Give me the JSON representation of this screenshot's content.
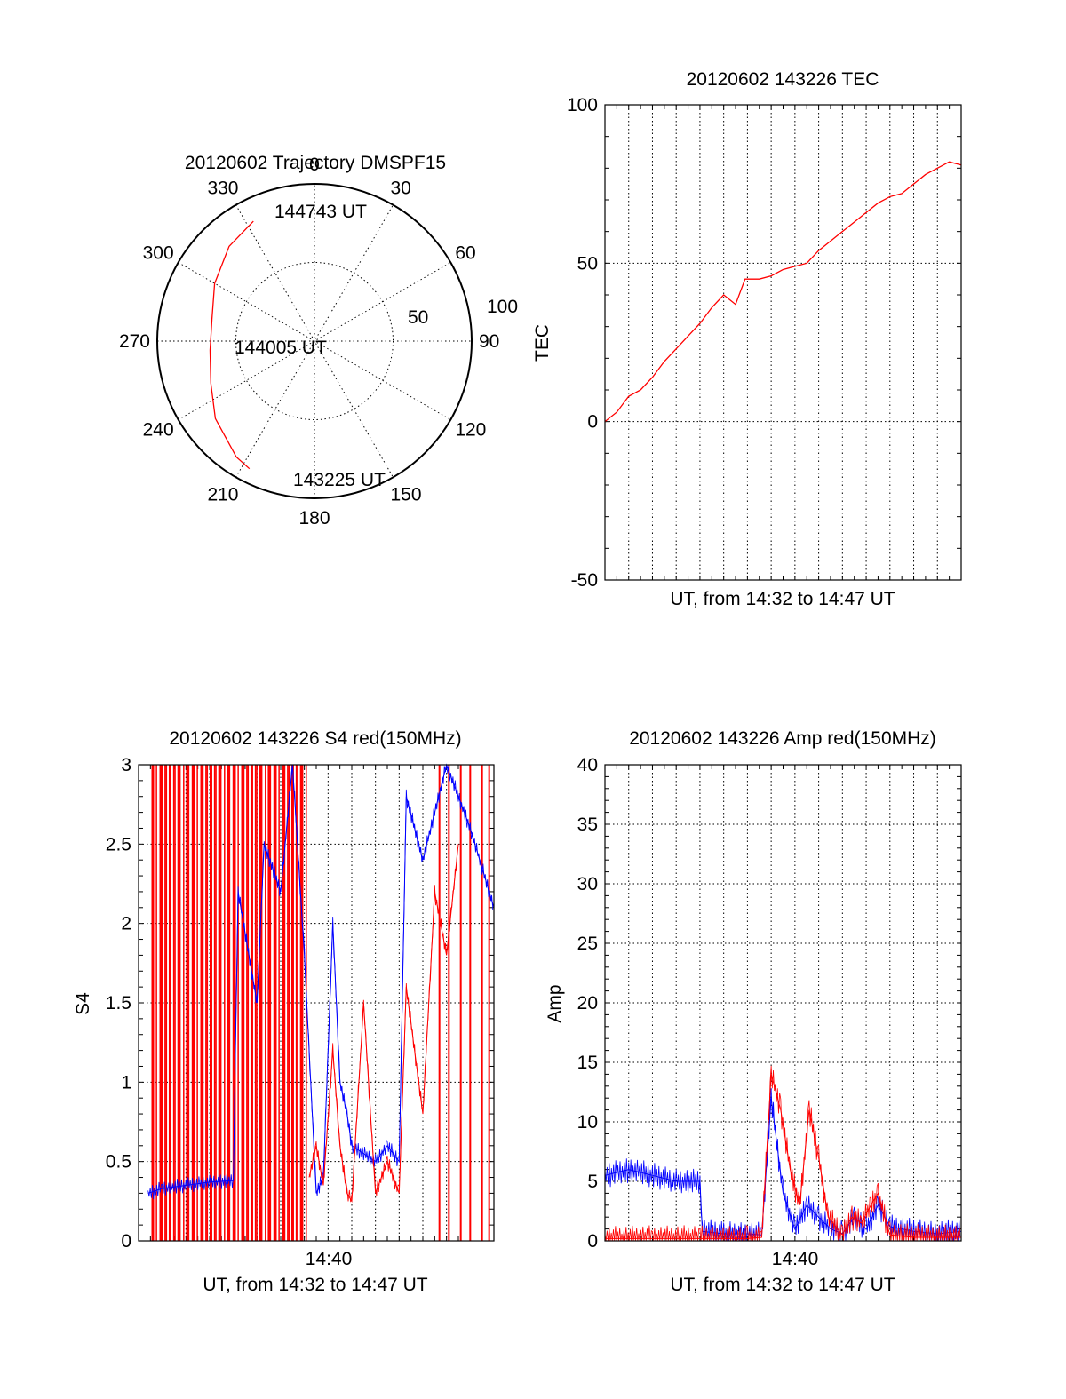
{
  "chart_data": [
    {
      "type": "polar",
      "title": "20120602 Trajectory DMSPF15",
      "angle_labels": [
        "0",
        "30",
        "60",
        "90",
        "120",
        "150",
        "180",
        "210",
        "240",
        "270",
        "300",
        "330"
      ],
      "radial_labels": [
        "50",
        "100"
      ],
      "point_labels": [
        "144743 UT",
        "144005 UT",
        "143225 UT"
      ],
      "series": [
        {
          "color": "#ff0000",
          "points": [
            {
              "az": 333,
              "el": 13
            },
            {
              "az": 318,
              "el": 17
            },
            {
              "az": 300,
              "el": 24
            },
            {
              "az": 282,
              "el": 30
            },
            {
              "az": 265,
              "el": 30
            },
            {
              "az": 248,
              "el": 26
            },
            {
              "az": 232,
              "el": 18
            },
            {
              "az": 214,
              "el": 10
            },
            {
              "az": 207,
              "el": 8
            }
          ]
        }
      ]
    },
    {
      "type": "line",
      "title": "20120602 143226 TEC",
      "xlabel": "UT, from 14:32 to 14:47 UT",
      "ylabel": "TEC",
      "ylim": [
        -50,
        100
      ],
      "yticks": [
        "100",
        "50",
        "0",
        "-50"
      ],
      "grid": true,
      "series": [
        {
          "color": "#ff0000",
          "x": [
            0,
            0.5,
            1,
            1.5,
            2,
            2.5,
            3,
            3.5,
            4,
            4.5,
            5,
            5.5,
            5.9,
            6.5,
            7,
            7.5,
            8,
            8.5,
            9,
            9.5,
            10,
            10.5,
            11,
            11.5,
            12,
            12.5,
            13,
            13.5,
            14,
            14.5,
            15
          ],
          "y": [
            0,
            3,
            8,
            10,
            14,
            19,
            23,
            27,
            31,
            36,
            40,
            37,
            45,
            45,
            46,
            48,
            49,
            50,
            54,
            57,
            60,
            63,
            66,
            69,
            71,
            72,
            75,
            78,
            80,
            82,
            81
          ]
        }
      ]
    },
    {
      "type": "line",
      "title": "20120602 143226 S4 red(150MHz)",
      "xlabel": "UT, from 14:32 to 14:47 UT",
      "ylabel": "S4",
      "ylim": [
        0,
        3
      ],
      "yticks": [
        "3",
        "2.5",
        "2",
        "1.5",
        "1",
        "0.5",
        "0"
      ],
      "xtick_labels": [
        "14:40"
      ],
      "grid": true,
      "series": [
        {
          "color": "#0000ff",
          "x": [
            0.4,
            1,
            2,
            3,
            4,
            4.2,
            5,
            5.3,
            6,
            6.5,
            7,
            7.5,
            7.8,
            8.2,
            8.5,
            8.8,
            9,
            10,
            10.5,
            11,
            11.3,
            12,
            13,
            14,
            15
          ],
          "y": [
            0.3,
            0.33,
            0.35,
            0.37,
            0.38,
            2.2,
            1.5,
            2.5,
            2.2,
            3.0,
            1.8,
            0.3,
            0.4,
            2.0,
            1.0,
            0.8,
            0.6,
            0.5,
            0.6,
            0.5,
            2.8,
            2.4,
            3.0,
            2.6,
            2.1
          ]
        },
        {
          "color": "#ff0000",
          "x": [
            7.2,
            7.5,
            7.8,
            8.2,
            8.5,
            8.8,
            9,
            9.5,
            10,
            10.5,
            11,
            11.3,
            12,
            12.5,
            13,
            13.5
          ],
          "y": [
            0.4,
            0.6,
            0.35,
            1.2,
            0.6,
            0.3,
            0.25,
            1.5,
            0.3,
            0.5,
            0.3,
            1.6,
            0.8,
            2.2,
            1.8,
            2.5
          ]
        }
      ]
    },
    {
      "type": "line",
      "title": "20120602 143226 Amp red(150MHz)",
      "xlabel": "UT, from 14:32 to 14:47 UT",
      "ylabel": "Amp",
      "ylim": [
        0,
        40
      ],
      "yticks": [
        "40",
        "35",
        "30",
        "25",
        "20",
        "15",
        "10",
        "5",
        "0"
      ],
      "xtick_labels": [
        "14:40"
      ],
      "grid": true,
      "series": [
        {
          "color": "#0000ff",
          "x": [
            0,
            1,
            2,
            3,
            4,
            4.1,
            5,
            6,
            6.6,
            7,
            7.5,
            8,
            8.5,
            9,
            9.5,
            10,
            10.5,
            11,
            11.5,
            12,
            13,
            14,
            15
          ],
          "y": [
            5.5,
            6,
            5.5,
            5,
            5,
            0.8,
            0.6,
            0.6,
            0.5,
            12,
            4,
            1,
            3,
            2,
            1,
            0.6,
            2,
            1,
            3,
            1.2,
            0.8,
            0.6,
            0.8
          ]
        },
        {
          "color": "#ff0000",
          "x": [
            0,
            2,
            4,
            6,
            6.6,
            7,
            7.4,
            7.8,
            8.2,
            8.6,
            9,
            9.4,
            10,
            10.4,
            10.8,
            11.2,
            11.5,
            12,
            13,
            15
          ],
          "y": [
            0.2,
            0.2,
            0.2,
            0.2,
            0.3,
            14,
            11,
            6,
            3,
            11,
            7,
            2,
            0.5,
            2,
            1.5,
            3,
            4,
            0.5,
            0.3,
            0.3
          ]
        }
      ]
    }
  ]
}
